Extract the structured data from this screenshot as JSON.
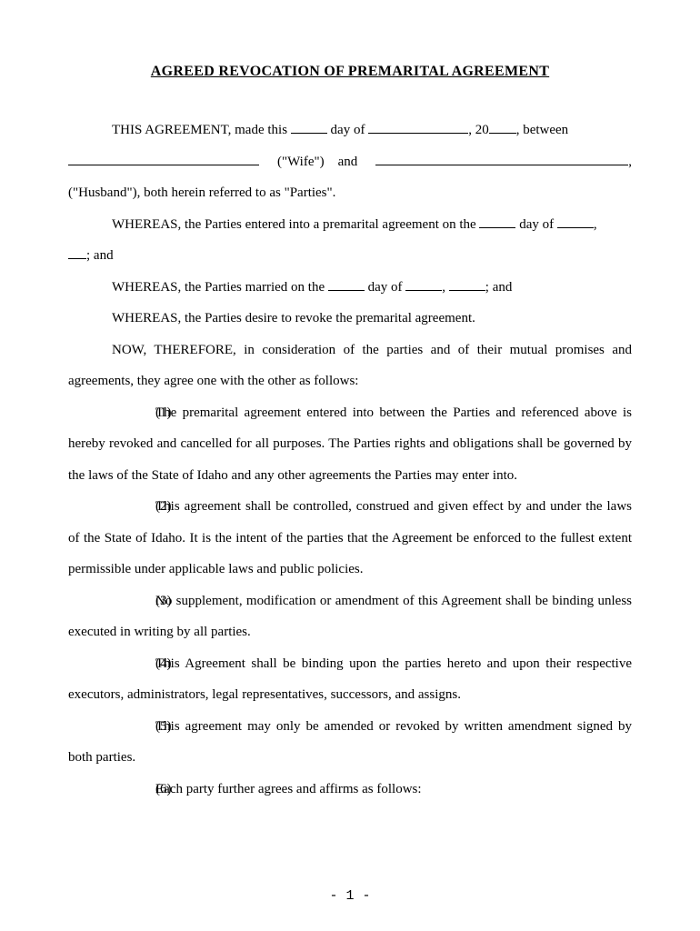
{
  "title": "AGREED REVOCATION OF PREMARITAL AGREEMENT",
  "intro": {
    "line1_prefix": "THIS AGREEMENT, made this ",
    "line1_dayof": " day of ",
    "line1_year": ", 20",
    "line1_suffix": ", between",
    "wife_label": "(\"Wife\")",
    "and_label": "and",
    "husband_line": "(\"Husband\"), both herein referred to as \"Parties\"."
  },
  "whereas": {
    "w1_prefix": "WHEREAS, the Parties entered into a premarital agreement on the ",
    "w1_dayof": " day of ",
    "w1_suffix": ",",
    "w1_cont": "; and",
    "w2_prefix": "WHEREAS, the Parties married on the ",
    "w2_dayof": " day of ",
    "w2_comma": ", ",
    "w2_suffix": "; and",
    "w3": "WHEREAS, the Parties desire to revoke the premarital agreement."
  },
  "now_therefore": "NOW, THEREFORE, in consideration of the parties and of their mutual promises and agreements, they agree one with the other as follows:",
  "clauses": {
    "c1_num": "(1)",
    "c1": "The premarital agreement entered into between the Parties and referenced above is hereby revoked and cancelled for all purposes.  The Parties rights and obligations shall be governed by the laws of the State of Idaho and any other agreements the Parties may enter into.",
    "c2_num": "(2)",
    "c2": "This agreement shall be controlled, construed and given effect by and under the laws of the State of Idaho.  It is the intent of the parties that the Agreement be enforced to the fullest extent permissible under applicable laws and public policies.",
    "c3_num": "(3)",
    "c3": "No supplement, modification or amendment of this Agreement shall be binding unless executed in writing by all parties.",
    "c4_num": "(4)",
    "c4": "This Agreement shall be binding upon the parties hereto and upon their respective executors, administrators, legal representatives, successors, and assigns.",
    "c5_num": "(5)",
    "c5": "This agreement may only be amended or revoked by written amendment signed by both parties.",
    "c6_num": "(6)",
    "c6": "Each party further agrees and affirms as follows:"
  },
  "page_number": "- 1 -"
}
